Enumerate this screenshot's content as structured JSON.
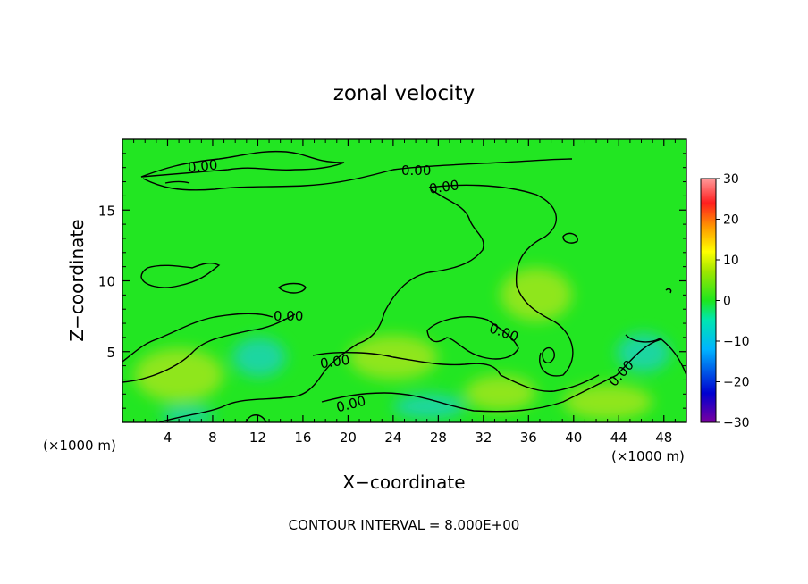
{
  "chart_data": {
    "type": "heatmap",
    "title": "zonal velocity",
    "xlabel": "X−coordinate",
    "ylabel": "Z−coordinate",
    "x_unit_left": "(×1000 m)",
    "x_unit_right": "(×1000 m)",
    "xlim": [
      0,
      50
    ],
    "ylim": [
      0,
      20
    ],
    "x_ticks": [
      4,
      8,
      12,
      16,
      20,
      24,
      28,
      32,
      36,
      40,
      44,
      48
    ],
    "y_ticks": [
      5,
      10,
      15
    ],
    "colorbar": {
      "range": [
        -30,
        30
      ],
      "ticks": [
        30,
        20,
        10,
        0,
        -10,
        -20,
        -30
      ],
      "tick_labels": [
        "30",
        "20",
        "10",
        "0",
        "−10",
        "−20",
        "−30"
      ]
    },
    "contour_labels": [
      "0.00",
      "0.00",
      "0.00",
      "0.00",
      "0.00",
      "0.00",
      "0.00"
    ],
    "footer": "CONTOUR INTERVAL = 8.000E+00",
    "colors": {
      "background_field": "#22e622",
      "positive_patch": "#8fe61a",
      "negative_patch": "#1ad6a0"
    }
  }
}
